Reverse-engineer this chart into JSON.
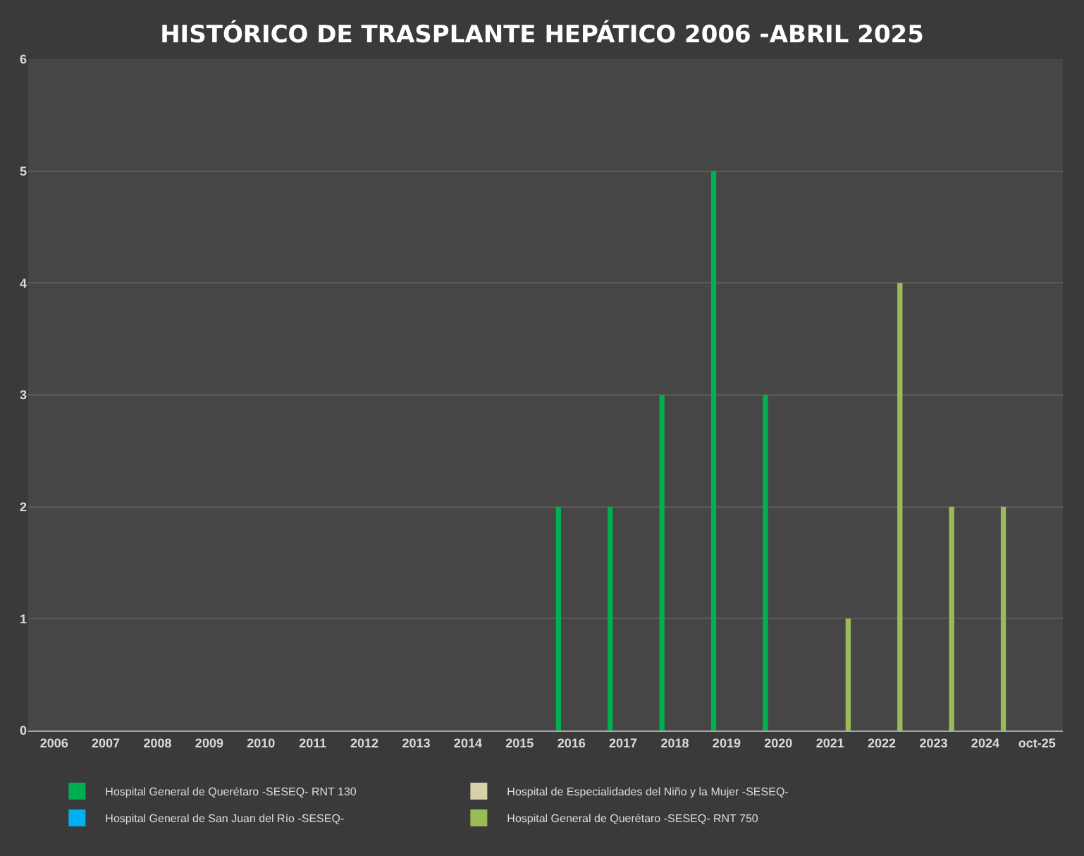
{
  "chart_data": {
    "type": "bar",
    "title": "HISTÓRICO DE TRASPLANTE HEPÁTICO 2006 -ABRIL 2025",
    "categories": [
      "2006",
      "2007",
      "2008",
      "2009",
      "2010",
      "2011",
      "2012",
      "2013",
      "2014",
      "2015",
      "2016",
      "2017",
      "2018",
      "2019",
      "2020",
      "2021",
      "2022",
      "2023",
      "2024",
      "oct-25"
    ],
    "series": [
      {
        "color": "#ffc000",
        "values": [
          0,
          0,
          0,
          0,
          0,
          0,
          0,
          0,
          0,
          0,
          0,
          0,
          0,
          0,
          0,
          0,
          0,
          0,
          0,
          0
        ]
      },
      {
        "name": "Hospital General de Querétaro -SESEQ- RNT 130",
        "color": "#00b050",
        "values": [
          0,
          0,
          0,
          0,
          0,
          0,
          0,
          0,
          0,
          0,
          2,
          2,
          3,
          5,
          3,
          0,
          0,
          0,
          0,
          0
        ]
      },
      {
        "name": "Hospital de Especialidades del Niño y la Mujer -SESEQ-",
        "color": "#d6d1a8",
        "values": [
          0,
          0,
          0,
          0,
          0,
          0,
          0,
          0,
          0,
          0,
          0,
          0,
          0,
          0,
          0,
          0,
          0,
          0,
          0,
          0
        ]
      },
      {
        "name": "Hospital General de San Juan del Río -SESEQ-",
        "color": "#00b0f0",
        "values": [
          0,
          0,
          0,
          0,
          0,
          0,
          0,
          0,
          0,
          0,
          0,
          0,
          0,
          0,
          0,
          0,
          0,
          0,
          0,
          0
        ]
      },
      {
        "color": "#f4a6a6",
        "values": [
          0,
          0,
          0,
          0,
          0,
          0,
          0,
          0,
          0,
          0,
          0,
          0,
          0,
          0,
          0,
          0,
          0,
          0,
          0,
          0
        ]
      },
      {
        "color": "#9dd9e5",
        "values": [
          0,
          0,
          0,
          0,
          0,
          0,
          0,
          0,
          0,
          0,
          0,
          0,
          0,
          0,
          0,
          0,
          0,
          0,
          0,
          0
        ]
      },
      {
        "color": "#ed7d31",
        "values": [
          0,
          0,
          0,
          0,
          0,
          0,
          0,
          0,
          0,
          0,
          0,
          0,
          0,
          0,
          0,
          0,
          0,
          0,
          0,
          0
        ]
      },
      {
        "name": "Hospital General de Querétaro -SESEQ- RNT 750",
        "color": "#9bbb59",
        "values": [
          0,
          0,
          0,
          0,
          0,
          0,
          0,
          0,
          0,
          0,
          0,
          0,
          0,
          0,
          0,
          1,
          4,
          2,
          2,
          0
        ]
      }
    ],
    "ylim": [
      0,
      6
    ],
    "yticks": [
      0,
      1,
      2,
      3,
      4,
      5,
      6
    ],
    "grid": "y",
    "legend": "bottom"
  }
}
